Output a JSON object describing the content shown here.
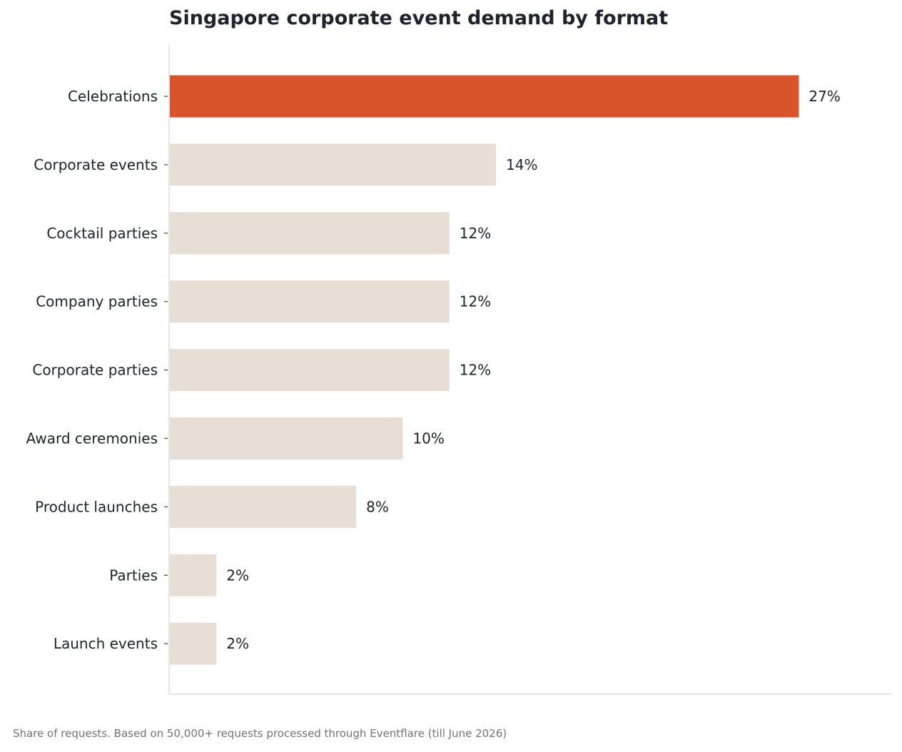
{
  "chart_data": {
    "type": "bar",
    "orientation": "horizontal",
    "title": "Singapore corporate event demand by format",
    "xlabel": "",
    "ylabel": "",
    "categories": [
      "Celebrations",
      "Corporate events",
      "Cocktail parties",
      "Company parties",
      "Corporate parties",
      "Award ceremonies",
      "Product launches",
      "Parties",
      "Launch events"
    ],
    "values": [
      27,
      14,
      12,
      12,
      12,
      10,
      8,
      2,
      2
    ],
    "value_labels": [
      "27%",
      "14%",
      "12%",
      "12%",
      "12%",
      "10%",
      "8%",
      "2%",
      "2%"
    ],
    "unit": "%",
    "xlim": [
      0,
      31
    ],
    "highlight_index": 0,
    "grid": false,
    "legend": "none",
    "colors": {
      "highlight": "#d9532c",
      "default": "#e7dfd5",
      "axis": "#dddddd",
      "text": "#20232d"
    }
  },
  "footnote": "Share of requests. Based on 50,000+ requests processed through Eventflare (till June 2026)"
}
